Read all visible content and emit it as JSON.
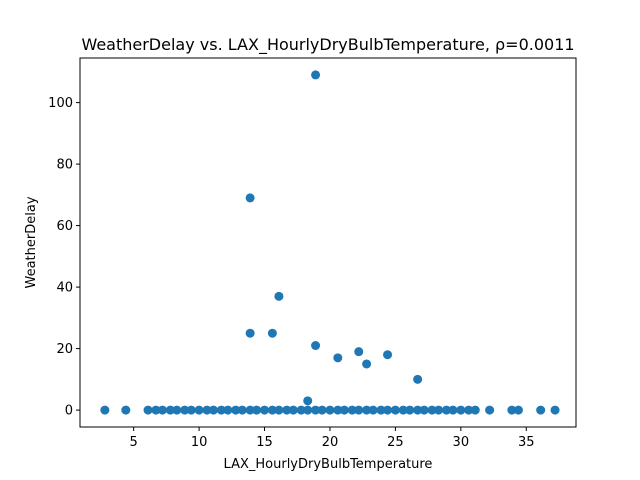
{
  "chart_data": {
    "type": "scatter",
    "title": "WeatherDelay vs. LAX_HourlyDryBulbTemperature, ρ=0.0011",
    "xlabel": "LAX_HourlyDryBulbTemperature",
    "ylabel": "WeatherDelay",
    "xlim": [
      0.9,
      38.8
    ],
    "ylim": [
      -5.5,
      114.5
    ],
    "xticks": [
      5,
      10,
      15,
      20,
      25,
      30,
      35
    ],
    "yticks": [
      0,
      20,
      40,
      60,
      80,
      100
    ],
    "grid": false,
    "legend": "none",
    "marker_color": "#1f77b4",
    "points": [
      {
        "x": 2.8,
        "y": 0
      },
      {
        "x": 4.4,
        "y": 0
      },
      {
        "x": 6.1,
        "y": 0
      },
      {
        "x": 6.7,
        "y": 0
      },
      {
        "x": 7.2,
        "y": 0
      },
      {
        "x": 7.8,
        "y": 0
      },
      {
        "x": 8.3,
        "y": 0
      },
      {
        "x": 8.9,
        "y": 0
      },
      {
        "x": 9.4,
        "y": 0
      },
      {
        "x": 10.0,
        "y": 0
      },
      {
        "x": 10.6,
        "y": 0
      },
      {
        "x": 11.1,
        "y": 0
      },
      {
        "x": 11.7,
        "y": 0
      },
      {
        "x": 12.2,
        "y": 0
      },
      {
        "x": 12.8,
        "y": 0
      },
      {
        "x": 13.3,
        "y": 0
      },
      {
        "x": 13.9,
        "y": 0
      },
      {
        "x": 14.4,
        "y": 0
      },
      {
        "x": 15.0,
        "y": 0
      },
      {
        "x": 15.6,
        "y": 0
      },
      {
        "x": 16.1,
        "y": 0
      },
      {
        "x": 16.7,
        "y": 0
      },
      {
        "x": 17.2,
        "y": 0
      },
      {
        "x": 17.8,
        "y": 0
      },
      {
        "x": 18.3,
        "y": 0
      },
      {
        "x": 18.9,
        "y": 0
      },
      {
        "x": 19.4,
        "y": 0
      },
      {
        "x": 20.0,
        "y": 0
      },
      {
        "x": 20.6,
        "y": 0
      },
      {
        "x": 21.1,
        "y": 0
      },
      {
        "x": 21.7,
        "y": 0
      },
      {
        "x": 22.2,
        "y": 0
      },
      {
        "x": 22.8,
        "y": 0
      },
      {
        "x": 23.3,
        "y": 0
      },
      {
        "x": 23.9,
        "y": 0
      },
      {
        "x": 24.4,
        "y": 0
      },
      {
        "x": 25.0,
        "y": 0
      },
      {
        "x": 25.6,
        "y": 0
      },
      {
        "x": 26.1,
        "y": 0
      },
      {
        "x": 26.7,
        "y": 0
      },
      {
        "x": 27.2,
        "y": 0
      },
      {
        "x": 27.8,
        "y": 0
      },
      {
        "x": 28.3,
        "y": 0
      },
      {
        "x": 28.9,
        "y": 0
      },
      {
        "x": 29.4,
        "y": 0
      },
      {
        "x": 30.0,
        "y": 0
      },
      {
        "x": 30.6,
        "y": 0
      },
      {
        "x": 31.1,
        "y": 0
      },
      {
        "x": 32.2,
        "y": 0
      },
      {
        "x": 33.9,
        "y": 0
      },
      {
        "x": 34.4,
        "y": 0
      },
      {
        "x": 36.1,
        "y": 0
      },
      {
        "x": 37.2,
        "y": 0
      },
      {
        "x": 18.3,
        "y": 3
      },
      {
        "x": 13.9,
        "y": 25
      },
      {
        "x": 15.6,
        "y": 25
      },
      {
        "x": 16.1,
        "y": 37
      },
      {
        "x": 18.9,
        "y": 21
      },
      {
        "x": 20.6,
        "y": 17
      },
      {
        "x": 22.2,
        "y": 19
      },
      {
        "x": 22.8,
        "y": 15
      },
      {
        "x": 24.4,
        "y": 18
      },
      {
        "x": 26.7,
        "y": 10
      },
      {
        "x": 13.9,
        "y": 69
      },
      {
        "x": 18.9,
        "y": 109
      }
    ]
  }
}
